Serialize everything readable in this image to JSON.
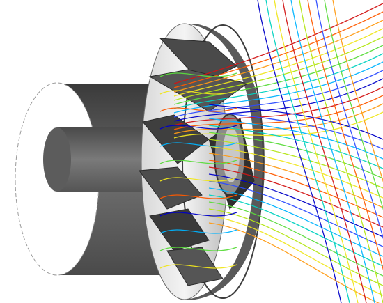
{
  "scene": {
    "subject": "impeller-with-streamlines",
    "background_color": "#ffffff",
    "body_color": "#6b6b6b",
    "body_dark": "#3f3f3f",
    "face_color": "#f2f2f2",
    "streamline_colors": [
      "#0000c8",
      "#2c4bff",
      "#00b4ff",
      "#00d2c0",
      "#5adc3c",
      "#b4e614",
      "#f0e61e",
      "#ff9b14",
      "#ff5a00",
      "#d21414"
    ]
  }
}
